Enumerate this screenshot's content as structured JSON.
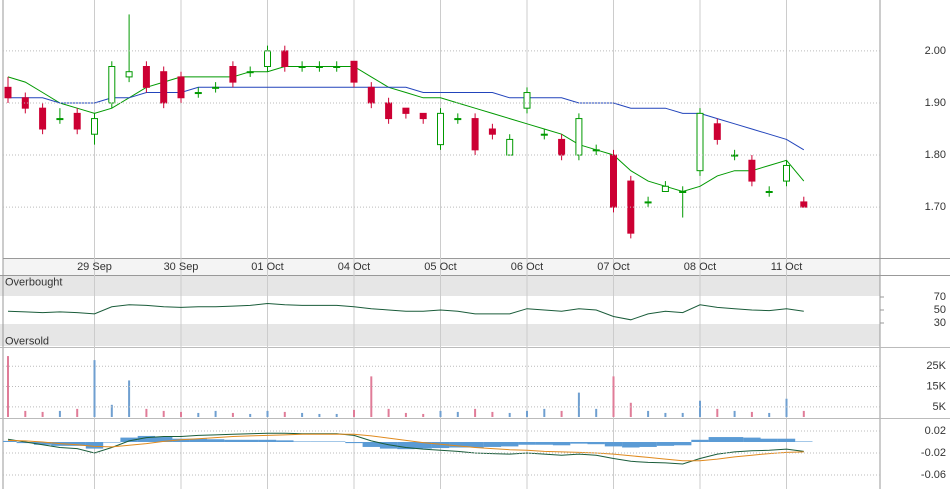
{
  "chart_data": [
    {
      "type": "candlestick",
      "categories": [
        null,
        null,
        null,
        null,
        null,
        "29 Sep",
        null,
        null,
        null,
        null,
        "30 Sep",
        null,
        null,
        null,
        null,
        "01 Oct",
        null,
        null,
        null,
        null,
        "04 Oct",
        null,
        null,
        null,
        null,
        "05 Oct",
        null,
        null,
        null,
        null,
        "06 Oct",
        null,
        null,
        null,
        null,
        "07 Oct",
        null,
        null,
        null,
        null,
        "08 Oct",
        null,
        null,
        null,
        null,
        "11 Oct",
        null
      ],
      "open": [
        1.93,
        1.91,
        1.89,
        1.87,
        1.88,
        1.84,
        1.9,
        1.95,
        1.97,
        1.96,
        1.95,
        1.92,
        1.93,
        1.97,
        1.96,
        1.97,
        2.0,
        1.97,
        1.97,
        1.97,
        1.98,
        1.93,
        1.9,
        1.89,
        1.88,
        1.82,
        1.87,
        1.87,
        1.85,
        1.8,
        1.89,
        1.84,
        1.83,
        1.8,
        1.81,
        1.8,
        1.75,
        1.71,
        1.73,
        1.73,
        1.77,
        1.86,
        1.8,
        1.79,
        1.73,
        1.75,
        1.71
      ],
      "high": [
        1.95,
        1.92,
        1.9,
        1.89,
        1.89,
        1.88,
        1.98,
        2.07,
        1.98,
        1.97,
        1.96,
        1.93,
        1.94,
        1.98,
        1.97,
        2.01,
        2.01,
        1.98,
        1.98,
        1.98,
        1.98,
        1.94,
        1.91,
        1.89,
        1.88,
        1.89,
        1.88,
        1.88,
        1.86,
        1.84,
        1.93,
        1.85,
        1.84,
        1.88,
        1.82,
        1.81,
        1.76,
        1.72,
        1.75,
        1.74,
        1.89,
        1.87,
        1.81,
        1.8,
        1.74,
        1.79,
        1.72
      ],
      "low": [
        1.9,
        1.88,
        1.84,
        1.86,
        1.84,
        1.82,
        1.89,
        1.94,
        1.92,
        1.89,
        1.9,
        1.91,
        1.92,
        1.93,
        1.95,
        1.96,
        1.96,
        1.96,
        1.96,
        1.96,
        1.93,
        1.89,
        1.86,
        1.87,
        1.86,
        1.81,
        1.86,
        1.8,
        1.83,
        1.8,
        1.88,
        1.83,
        1.79,
        1.79,
        1.8,
        1.69,
        1.64,
        1.7,
        1.73,
        1.68,
        1.76,
        1.82,
        1.79,
        1.74,
        1.72,
        1.74,
        1.7
      ],
      "close": [
        1.91,
        1.89,
        1.85,
        1.87,
        1.85,
        1.87,
        1.97,
        1.96,
        1.93,
        1.9,
        1.91,
        1.92,
        1.93,
        1.94,
        1.96,
        2.0,
        1.97,
        1.97,
        1.97,
        1.97,
        1.94,
        1.9,
        1.87,
        1.88,
        1.87,
        1.88,
        1.87,
        1.81,
        1.84,
        1.83,
        1.92,
        1.84,
        1.8,
        1.87,
        1.81,
        1.7,
        1.65,
        1.71,
        1.74,
        1.73,
        1.88,
        1.83,
        1.8,
        1.75,
        1.73,
        1.78,
        1.7
      ],
      "up_color": "#009900",
      "down_color": "#cc0033",
      "series": [
        {
          "color": "#009900",
          "values": [
            1.95,
            1.94,
            1.92,
            1.9,
            1.89,
            1.88,
            1.89,
            1.91,
            1.93,
            1.94,
            1.95,
            1.95,
            1.95,
            1.95,
            1.96,
            1.96,
            1.97,
            1.97,
            1.97,
            1.97,
            1.97,
            1.95,
            1.93,
            1.92,
            1.91,
            1.91,
            1.9,
            1.89,
            1.88,
            1.87,
            1.86,
            1.85,
            1.84,
            1.82,
            1.81,
            1.8,
            1.77,
            1.75,
            1.74,
            1.73,
            1.74,
            1.76,
            1.77,
            1.77,
            1.78,
            1.79,
            1.75
          ]
        },
        {
          "color": "#2244bb",
          "values": [
            1.91,
            1.91,
            1.91,
            1.9,
            1.9,
            1.9,
            1.91,
            1.91,
            1.92,
            1.92,
            1.92,
            1.93,
            1.93,
            1.93,
            1.93,
            1.93,
            1.93,
            1.93,
            1.93,
            1.93,
            1.93,
            1.93,
            1.93,
            1.93,
            1.92,
            1.92,
            1.92,
            1.92,
            1.92,
            1.91,
            1.91,
            1.91,
            1.91,
            1.9,
            1.9,
            1.9,
            1.89,
            1.89,
            1.89,
            1.88,
            1.88,
            1.87,
            1.86,
            1.85,
            1.84,
            1.83,
            1.81
          ]
        }
      ],
      "ylim": [
        1.61,
        2.09
      ],
      "yticks": [
        {
          "value": 1.7,
          "label": "1.70"
        },
        {
          "value": 1.8,
          "label": "1.80"
        },
        {
          "value": 1.9,
          "label": "1.90"
        },
        {
          "value": 2.0,
          "label": "2.00"
        }
      ],
      "grid": true
    },
    {
      "type": "line",
      "annotations": [
        "Overbought",
        "Oversold"
      ],
      "series": [
        {
          "color": "#1a5c3a",
          "values": [
            48,
            47,
            46,
            47,
            46,
            44,
            55,
            58,
            57,
            55,
            54,
            55,
            55,
            56,
            57,
            60,
            58,
            57,
            57,
            57,
            55,
            52,
            50,
            48,
            48,
            50,
            48,
            44,
            44,
            44,
            52,
            50,
            48,
            52,
            50,
            40,
            35,
            44,
            48,
            46,
            58,
            54,
            52,
            50,
            49,
            52,
            48
          ]
        }
      ],
      "ylim": [
        0,
        100
      ],
      "yticks": [
        70,
        50,
        30
      ],
      "grid": false
    },
    {
      "type": "bar",
      "values": [
        30000,
        3000,
        2500,
        3000,
        4000,
        28000,
        6000,
        18000,
        4000,
        3000,
        2500,
        2000,
        3000,
        2000,
        1500,
        3000,
        2500,
        2000,
        1500,
        1500,
        3500,
        20000,
        4000,
        2000,
        1500,
        3000,
        2500,
        4000,
        2500,
        2000,
        3000,
        4000,
        3000,
        12000,
        4000,
        20000,
        7000,
        3000,
        2000,
        2000,
        8000,
        4000,
        3000,
        2500,
        2000,
        9000,
        3000
      ],
      "up_color": "#6f9fd0",
      "down_color": "#e07c98",
      "ylim": [
        0,
        32000
      ],
      "yticks": [
        {
          "value": 25000,
          "label": "25K"
        },
        {
          "value": 15000,
          "label": "15K"
        },
        {
          "value": 5000,
          "label": "5K"
        }
      ],
      "grid": true
    },
    {
      "type": "line",
      "series": [
        {
          "color": "#1a5c3a",
          "values": [
            0.005,
            0,
            -0.005,
            -0.01,
            -0.012,
            -0.02,
            -0.01,
            0.002,
            0.008,
            0.01,
            0.01,
            0.012,
            0.013,
            0.014,
            0.015,
            0.016,
            0.016,
            0.015,
            0.015,
            0.015,
            0.012,
            0.002,
            -0.005,
            -0.01,
            -0.013,
            -0.015,
            -0.017,
            -0.02,
            -0.021,
            -0.022,
            -0.02,
            -0.022,
            -0.024,
            -0.022,
            -0.024,
            -0.03,
            -0.035,
            -0.037,
            -0.038,
            -0.04,
            -0.03,
            -0.022,
            -0.018,
            -0.016,
            -0.015,
            -0.013,
            -0.017
          ]
        },
        {
          "color": "#e08a1e",
          "values": [
            0.003,
            0.002,
            0,
            -0.003,
            -0.005,
            -0.008,
            -0.009,
            -0.006,
            -0.003,
            0.001,
            0.004,
            0.006,
            0.008,
            0.01,
            0.011,
            0.012,
            0.013,
            0.014,
            0.014,
            0.014,
            0.014,
            0.011,
            0.007,
            0.003,
            -0.001,
            -0.004,
            -0.007,
            -0.01,
            -0.012,
            -0.014,
            -0.015,
            -0.017,
            -0.018,
            -0.019,
            -0.02,
            -0.022,
            -0.025,
            -0.028,
            -0.031,
            -0.034,
            -0.034,
            -0.031,
            -0.027,
            -0.024,
            -0.021,
            -0.019,
            -0.018
          ]
        }
      ],
      "histogram": {
        "color": "#5b9bd5",
        "values": [
          0.002,
          -0.002,
          -0.005,
          -0.007,
          -0.007,
          -0.012,
          -0.001,
          0.008,
          0.011,
          0.009,
          0.006,
          0.006,
          0.005,
          0.004,
          0.004,
          0.004,
          0.003,
          0.001,
          0.001,
          0.001,
          -0.002,
          -0.009,
          -0.012,
          -0.013,
          -0.012,
          -0.011,
          -0.01,
          -0.01,
          -0.009,
          -0.008,
          -0.005,
          -0.005,
          -0.006,
          -0.003,
          -0.004,
          -0.008,
          -0.01,
          -0.009,
          -0.007,
          -0.006,
          0.004,
          0.009,
          0.009,
          0.008,
          0.006,
          0.006,
          0.001
        ]
      },
      "ylim": [
        -0.08,
        0.04
      ],
      "yticks": [
        0.02,
        -0.02,
        -0.06
      ],
      "grid": true
    }
  ]
}
